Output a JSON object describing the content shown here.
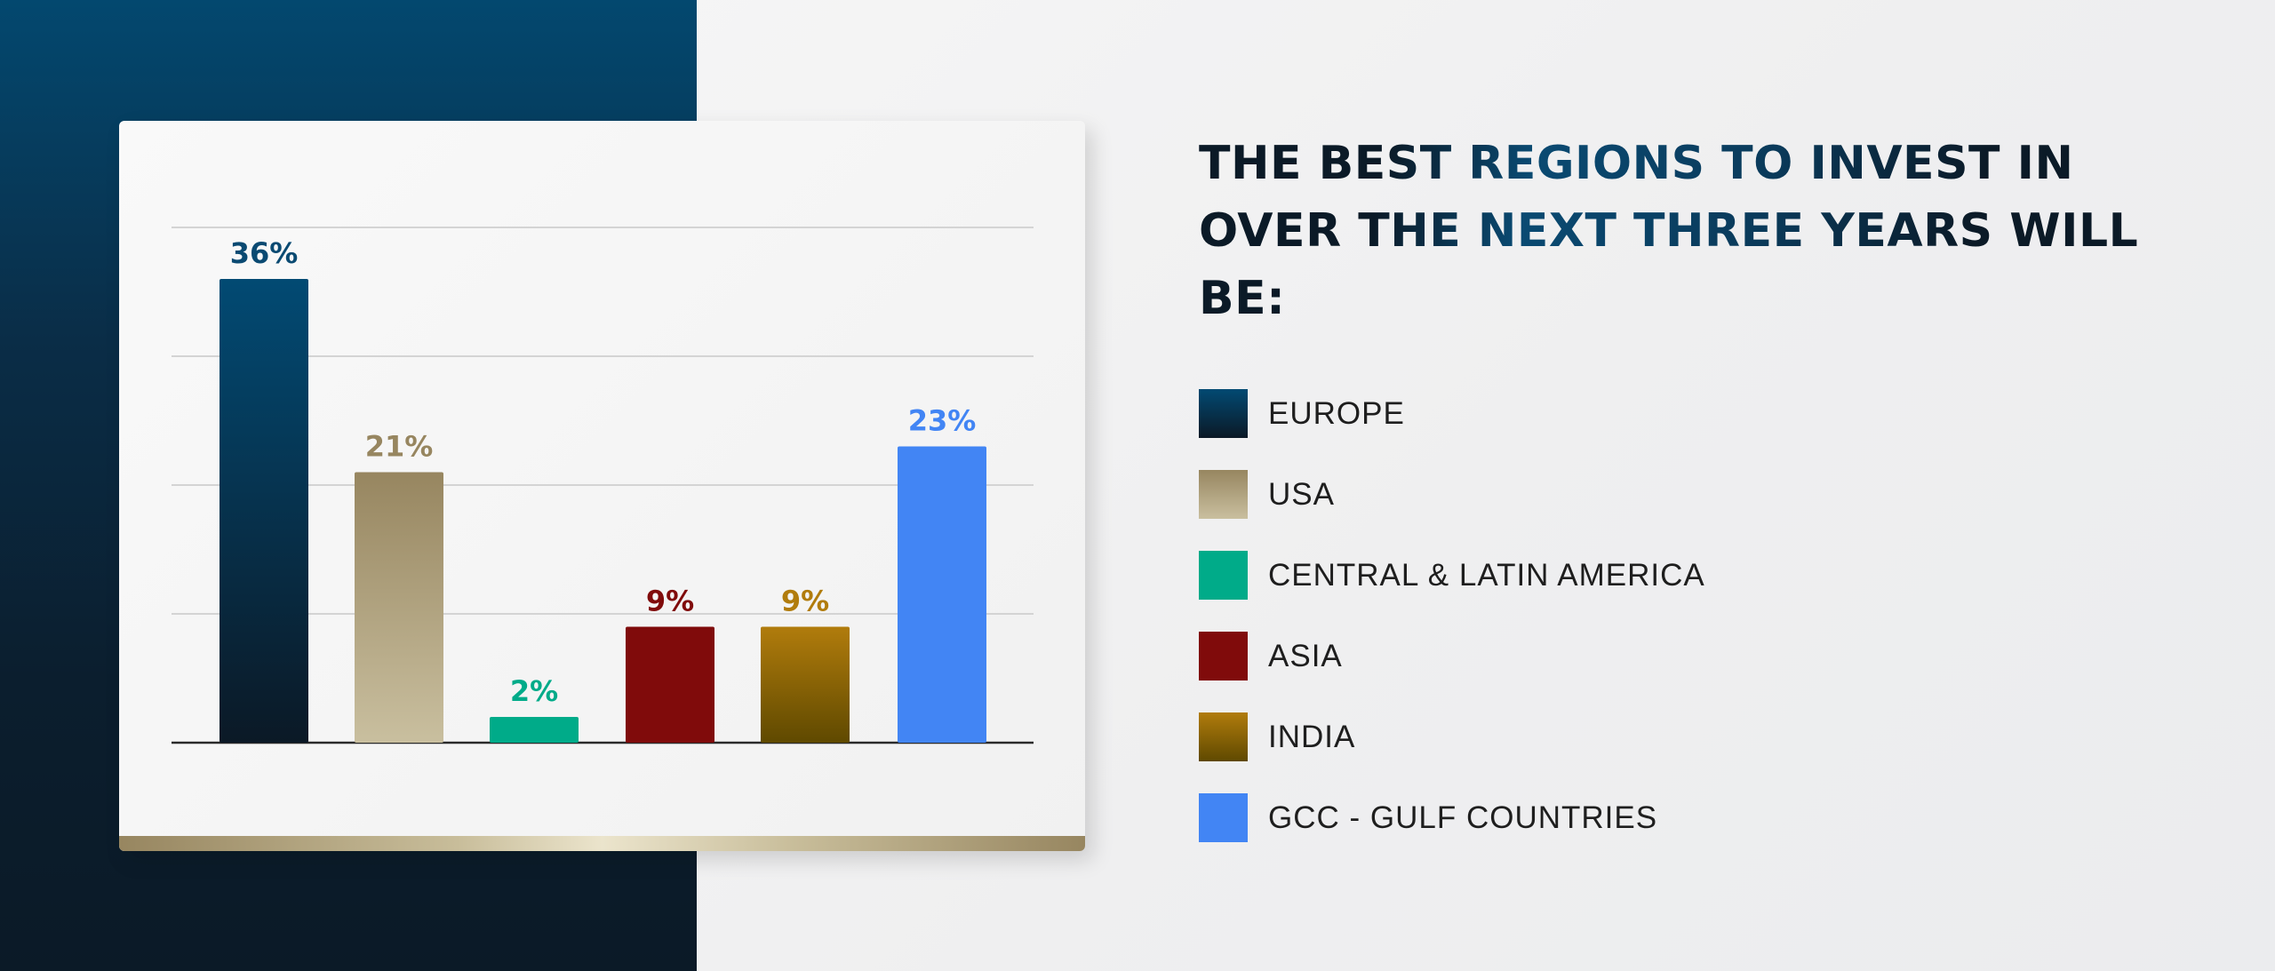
{
  "title": "THE BEST REGIONS TO INVEST IN OVER THE NEXT THREE YEARS WILL BE:",
  "chart_data": {
    "type": "bar",
    "title": "THE BEST REGIONS TO INVEST IN OVER THE NEXT THREE YEARS WILL BE:",
    "categories": [
      "EUROPE",
      "USA",
      "CENTRAL & LATIN AMERICA",
      "ASIA",
      "INDIA",
      "GCC - GULF COUNTRIES"
    ],
    "values": [
      36,
      21,
      2,
      9,
      9,
      23
    ],
    "data_labels": [
      "36%",
      "21%",
      "2%",
      "9%",
      "9%",
      "23%"
    ],
    "unit": "%",
    "ylim": [
      0,
      40
    ],
    "grid": true,
    "legend": "right",
    "colors": [
      {
        "top": "#024a73",
        "bottom": "#0b1926",
        "label": "#0a4a72"
      },
      {
        "top": "#978660",
        "bottom": "#c9bf9f",
        "label": "#978660"
      },
      {
        "top": "#00ab89",
        "bottom": "#00ab89",
        "label": "#00ab89"
      },
      {
        "top": "#800b0b",
        "bottom": "#800b0b",
        "label": "#800b0b"
      },
      {
        "top": "#b17c0c",
        "bottom": "#5f4900",
        "label": "#b17c0c"
      },
      {
        "top": "#4285f4",
        "bottom": "#4285f4",
        "label": "#4285f4"
      }
    ]
  }
}
